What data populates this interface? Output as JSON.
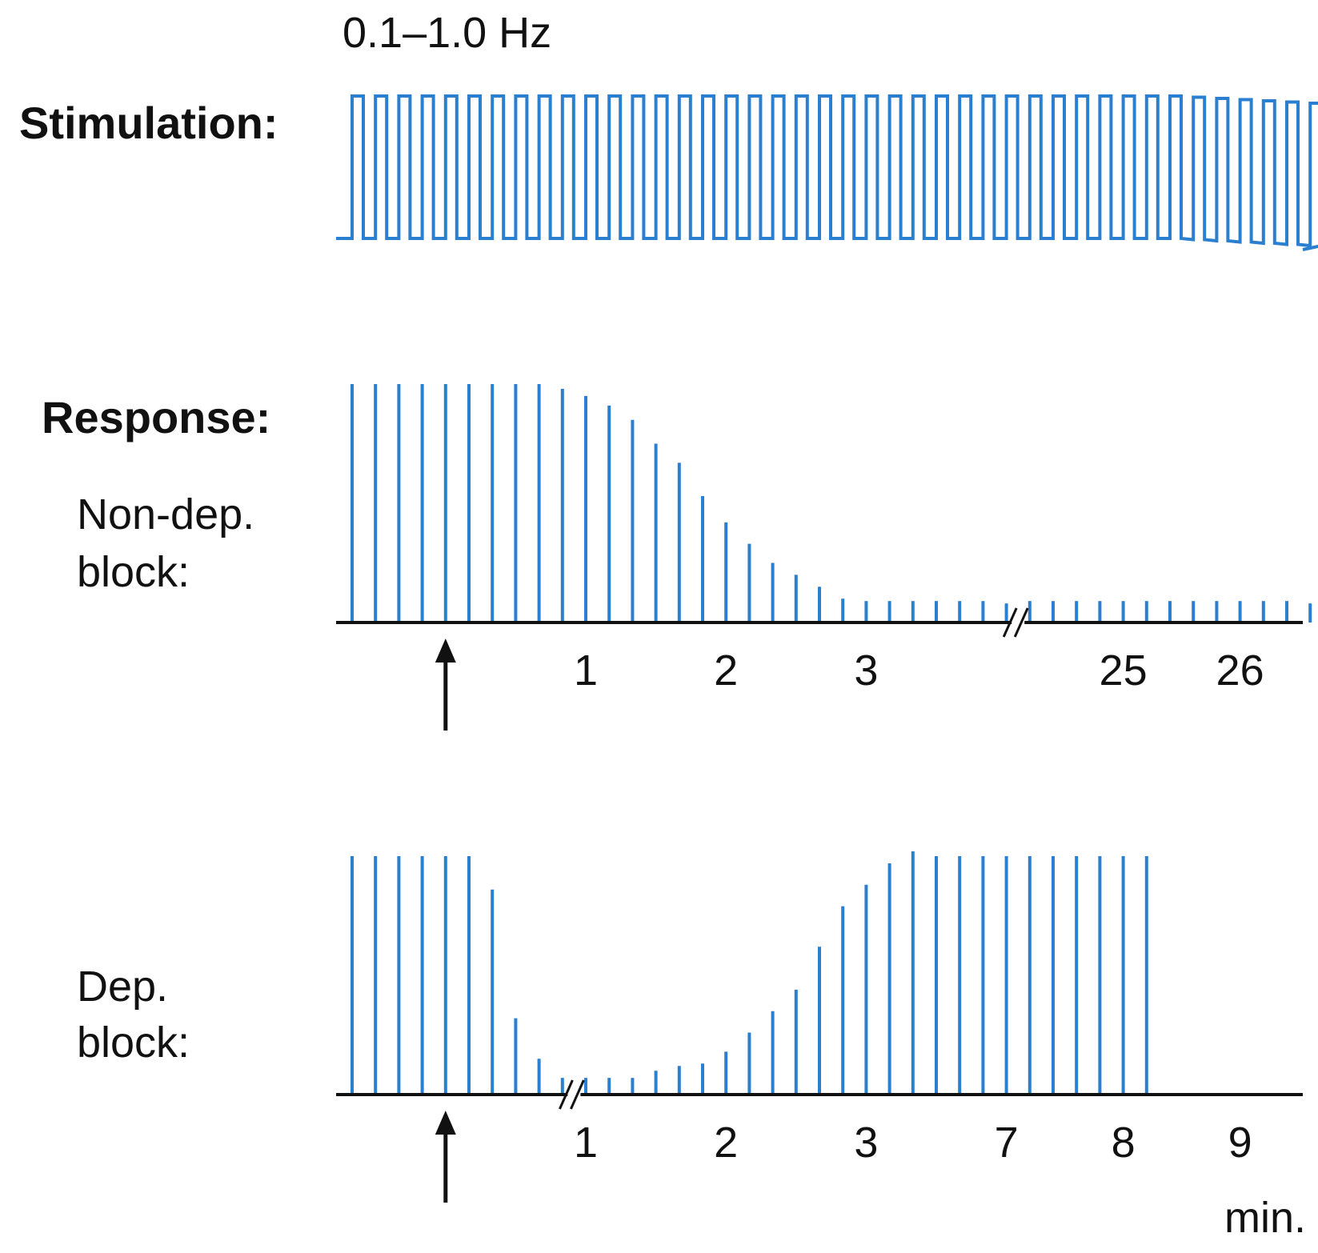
{
  "labels": {
    "frequency": "0.1–1.0 Hz",
    "stimulation": "Stimulation:",
    "response": "Response:",
    "nondep_line1": "Non-dep.",
    "nondep_line2": "block:",
    "dep_line1": "Dep.",
    "dep_line2": "block:",
    "unit": "min."
  },
  "colors": {
    "trace": "#2a7fd0",
    "axis": "#111111"
  },
  "chart_data": [
    {
      "type": "line",
      "name": "stimulation",
      "title": "Stimulation:",
      "subtitle": "0.1–1.0 Hz",
      "pulse_count": 42
    },
    {
      "type": "bar",
      "name": "non-depolarizing block",
      "title": "Non-dep. block:",
      "values": [
        1.0,
        1.0,
        1.0,
        1.0,
        1.0,
        1.0,
        1.0,
        1.0,
        1.0,
        0.98,
        0.95,
        0.91,
        0.85,
        0.75,
        0.67,
        0.53,
        0.42,
        0.33,
        0.25,
        0.2,
        0.15,
        0.1,
        0.09,
        0.09,
        0.09,
        0.09,
        0.09,
        0.09,
        0.08,
        0.09,
        0.09,
        0.09,
        0.09,
        0.09,
        0.09,
        0.09,
        0.09,
        0.09,
        0.09,
        0.09,
        0.09,
        0.08
      ],
      "ylim": [
        0,
        1
      ],
      "break_after_index": 28,
      "arrow_at_index": 4,
      "ticks": [
        {
          "label": "1",
          "index": 10
        },
        {
          "label": "2",
          "index": 16
        },
        {
          "label": "3",
          "index": 22
        },
        {
          "label": "25",
          "index": 33
        },
        {
          "label": "26",
          "index": 38
        }
      ]
    },
    {
      "type": "bar",
      "name": "depolarizing block",
      "title": "Dep. block:",
      "values": [
        1.0,
        1.0,
        1.0,
        1.0,
        1.0,
        1.0,
        0.86,
        0.32,
        0.15,
        0.07,
        0.07,
        0.07,
        0.07,
        0.1,
        0.12,
        0.13,
        0.18,
        0.26,
        0.35,
        0.44,
        0.62,
        0.79,
        0.88,
        0.97,
        1.02,
        1.0,
        1.0,
        1.0,
        1.0,
        1.0,
        1.0,
        1.0,
        1.0,
        1.0,
        1.0
      ],
      "ylim": [
        0,
        1
      ],
      "break_after_index": 9,
      "arrow_at_index": 4,
      "ticks": [
        {
          "label": "1",
          "index": 10
        },
        {
          "label": "2",
          "index": 16
        },
        {
          "label": "3",
          "index": 22
        },
        {
          "label": "7",
          "index": 28
        },
        {
          "label": "8",
          "index": 33
        },
        {
          "label": "9",
          "index": 38
        }
      ],
      "xlabel": "min."
    }
  ]
}
